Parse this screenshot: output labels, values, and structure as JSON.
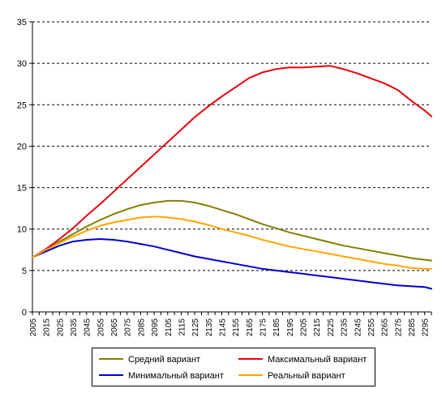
{
  "chart_data": {
    "type": "line",
    "title": "",
    "xlabel": "",
    "ylabel": "",
    "ylim": [
      0,
      35
    ],
    "yticks": [
      0,
      5,
      10,
      15,
      20,
      25,
      30,
      35
    ],
    "xlim": [
      2005,
      2300
    ],
    "xticks": [
      2005,
      2015,
      2025,
      2035,
      2045,
      2055,
      2065,
      2075,
      2085,
      2095,
      2105,
      2115,
      2125,
      2135,
      2145,
      2155,
      2165,
      2175,
      2185,
      2195,
      2205,
      2215,
      2225,
      2235,
      2245,
      2255,
      2265,
      2275,
      2285,
      2295
    ],
    "grid": "horizontal dashed",
    "legend_position": "bottom",
    "x": [
      2005,
      2015,
      2025,
      2035,
      2045,
      2055,
      2065,
      2075,
      2085,
      2095,
      2105,
      2115,
      2125,
      2135,
      2145,
      2155,
      2165,
      2175,
      2185,
      2195,
      2205,
      2215,
      2225,
      2235,
      2245,
      2255,
      2265,
      2275,
      2285,
      2295,
      2300
    ],
    "series": [
      {
        "name": "Средний вариант",
        "color": "#808000",
        "values": [
          6.6,
          7.5,
          8.5,
          9.4,
          10.3,
          11.1,
          11.8,
          12.4,
          12.9,
          13.2,
          13.4,
          13.4,
          13.2,
          12.8,
          12.3,
          11.8,
          11.2,
          10.6,
          10.1,
          9.6,
          9.2,
          8.8,
          8.4,
          8.0,
          7.7,
          7.4,
          7.1,
          6.8,
          6.5,
          6.3,
          6.2
        ]
      },
      {
        "name": "Максимальный вариант",
        "color": "#e8000b",
        "values": [
          6.6,
          7.6,
          8.8,
          10.1,
          11.6,
          13.0,
          14.5,
          16.0,
          17.5,
          19.0,
          20.5,
          22.0,
          23.5,
          24.8,
          26.0,
          27.1,
          28.2,
          28.9,
          29.3,
          29.5,
          29.5,
          29.6,
          29.7,
          29.3,
          28.8,
          28.2,
          27.6,
          26.8,
          25.5,
          24.3,
          23.6
        ]
      },
      {
        "name": "Минимальный вариант",
        "color": "#0000cc",
        "values": [
          6.6,
          7.3,
          8.0,
          8.5,
          8.7,
          8.8,
          8.7,
          8.5,
          8.2,
          7.9,
          7.5,
          7.1,
          6.7,
          6.4,
          6.1,
          5.8,
          5.5,
          5.2,
          5.0,
          4.8,
          4.6,
          4.4,
          4.2,
          4.0,
          3.8,
          3.6,
          3.4,
          3.2,
          3.1,
          3.0,
          2.8
        ]
      },
      {
        "name": "Реальный вариант",
        "color": "#ffa500",
        "values": [
          6.6,
          7.5,
          8.3,
          9.1,
          9.8,
          10.4,
          10.8,
          11.1,
          11.4,
          11.5,
          11.4,
          11.2,
          10.9,
          10.5,
          10.0,
          9.6,
          9.2,
          8.7,
          8.3,
          7.9,
          7.6,
          7.3,
          7.0,
          6.7,
          6.4,
          6.1,
          5.8,
          5.6,
          5.3,
          5.2,
          5.2
        ]
      }
    ]
  },
  "legend": {
    "items": [
      {
        "label": "Средний вариант",
        "color": "#808000"
      },
      {
        "label": "Максимальный вариант",
        "color": "#e8000b"
      },
      {
        "label": "Минимальный вариант",
        "color": "#0000cc"
      },
      {
        "label": "Реальный вариант",
        "color": "#ffa500"
      }
    ]
  }
}
